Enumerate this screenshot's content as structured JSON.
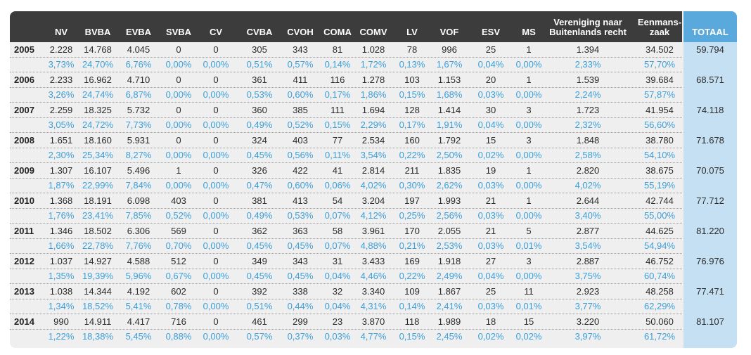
{
  "chart_data": {
    "type": "table",
    "columns": [
      "NV",
      "BVBA",
      "EVBA",
      "SVBA",
      "CV",
      "CVBA",
      "CVOH",
      "COMA",
      "COMV",
      "LV",
      "VOF",
      "ESV",
      "MS",
      "Vereniging naar Buitenlands recht",
      "Eenmans-zaak"
    ],
    "header_lines": [
      [
        "NV"
      ],
      [
        "BVBA"
      ],
      [
        "EVBA"
      ],
      [
        "SVBA"
      ],
      [
        "CV"
      ],
      [
        "CVBA"
      ],
      [
        "CVOH"
      ],
      [
        "COMA"
      ],
      [
        "COMV"
      ],
      [
        "LV"
      ],
      [
        "VOF"
      ],
      [
        "ESV"
      ],
      [
        "MS"
      ],
      [
        "Vereniging naar",
        "Buitenlands recht"
      ],
      [
        "Eenmans-",
        "zaak"
      ]
    ],
    "total_label": "TOTAAL",
    "rows": [
      {
        "year": "2005",
        "values": [
          "2.228",
          "14.768",
          "4.045",
          "0",
          "0",
          "305",
          "343",
          "81",
          "1.028",
          "78",
          "996",
          "25",
          "1",
          "1.394",
          "34.502"
        ],
        "pct": [
          "3,73%",
          "24,70%",
          "6,76%",
          "0,00%",
          "0,00%",
          "0,51%",
          "0,57%",
          "0,14%",
          "1,72%",
          "0,13%",
          "1,67%",
          "0,04%",
          "0,00%",
          "2,33%",
          "57,70%"
        ],
        "total": "59.794"
      },
      {
        "year": "2006",
        "values": [
          "2.233",
          "16.962",
          "4.710",
          "0",
          "0",
          "361",
          "411",
          "116",
          "1.278",
          "103",
          "1.153",
          "20",
          "1",
          "1.539",
          "39.684"
        ],
        "pct": [
          "3,26%",
          "24,74%",
          "6,87%",
          "0,00%",
          "0,00%",
          "0,53%",
          "0,60%",
          "0,17%",
          "1,86%",
          "0,15%",
          "1,68%",
          "0,03%",
          "0,00%",
          "2,24%",
          "57,87%"
        ],
        "total": "68.571"
      },
      {
        "year": "2007",
        "values": [
          "2.259",
          "18.325",
          "5.732",
          "0",
          "0",
          "360",
          "385",
          "111",
          "1.694",
          "128",
          "1.414",
          "30",
          "3",
          "1.723",
          "41.954"
        ],
        "pct": [
          "3,05%",
          "24,72%",
          "7,73%",
          "0,00%",
          "0,00%",
          "0,49%",
          "0,52%",
          "0,15%",
          "2,29%",
          "0,17%",
          "1,91%",
          "0,04%",
          "0,00%",
          "2,32%",
          "56,60%"
        ],
        "total": "74.118"
      },
      {
        "year": "2008",
        "values": [
          "1.651",
          "18.160",
          "5.931",
          "0",
          "0",
          "324",
          "403",
          "77",
          "2.534",
          "160",
          "1.792",
          "15",
          "3",
          "1.848",
          "38.780"
        ],
        "pct": [
          "2,30%",
          "25,34%",
          "8,27%",
          "0,00%",
          "0,00%",
          "0,45%",
          "0,56%",
          "0,11%",
          "3,54%",
          "0,22%",
          "2,50%",
          "0,02%",
          "0,00%",
          "2,58%",
          "54,10%"
        ],
        "total": "71.678"
      },
      {
        "year": "2009",
        "values": [
          "1.307",
          "16.107",
          "5.496",
          "1",
          "0",
          "326",
          "422",
          "41",
          "2.814",
          "211",
          "1.835",
          "19",
          "1",
          "2.820",
          "38.675"
        ],
        "pct": [
          "1,87%",
          "22,99%",
          "7,84%",
          "0,00%",
          "0,00%",
          "0,47%",
          "0,60%",
          "0,06%",
          "4,02%",
          "0,30%",
          "2,62%",
          "0,03%",
          "0,00%",
          "4,02%",
          "55,19%"
        ],
        "total": "70.075"
      },
      {
        "year": "2010",
        "values": [
          "1.368",
          "18.191",
          "6.098",
          "403",
          "0",
          "381",
          "413",
          "54",
          "3.204",
          "197",
          "1.993",
          "21",
          "1",
          "2.644",
          "42.744"
        ],
        "pct": [
          "1,76%",
          "23,41%",
          "7,85%",
          "0,52%",
          "0,00%",
          "0,49%",
          "0,53%",
          "0,07%",
          "4,12%",
          "0,25%",
          "2,56%",
          "0,03%",
          "0,00%",
          "3,40%",
          "55,00%"
        ],
        "total": "77.712"
      },
      {
        "year": "2011",
        "values": [
          "1.346",
          "18.502",
          "6.306",
          "569",
          "0",
          "362",
          "363",
          "58",
          "3.961",
          "170",
          "2.055",
          "21",
          "5",
          "2.877",
          "44.625"
        ],
        "pct": [
          "1,66%",
          "22,78%",
          "7,76%",
          "0,70%",
          "0,00%",
          "0,45%",
          "0,45%",
          "0,07%",
          "4,88%",
          "0,21%",
          "2,53%",
          "0,03%",
          "0,01%",
          "3,54%",
          "54,94%"
        ],
        "total": "81.220"
      },
      {
        "year": "2012",
        "values": [
          "1.037",
          "14.927",
          "4.588",
          "512",
          "0",
          "349",
          "343",
          "31",
          "3.433",
          "169",
          "1.918",
          "27",
          "3",
          "2.887",
          "46.752"
        ],
        "pct": [
          "1,35%",
          "19,39%",
          "5,96%",
          "0,67%",
          "0,00%",
          "0,45%",
          "0,45%",
          "0,04%",
          "4,46%",
          "0,22%",
          "2,49%",
          "0,04%",
          "0,00%",
          "3,75%",
          "60,74%"
        ],
        "total": "76.976"
      },
      {
        "year": "2013",
        "values": [
          "1.038",
          "14.344",
          "4.192",
          "602",
          "0",
          "392",
          "338",
          "32",
          "3.340",
          "109",
          "1.867",
          "25",
          "11",
          "2.923",
          "48.258"
        ],
        "pct": [
          "1,34%",
          "18,52%",
          "5,41%",
          "0,78%",
          "0,00%",
          "0,51%",
          "0,44%",
          "0,04%",
          "4,31%",
          "0,14%",
          "2,41%",
          "0,03%",
          "0,01%",
          "3,77%",
          "62,29%"
        ],
        "total": "77.471"
      },
      {
        "year": "2014",
        "values": [
          "990",
          "14.911",
          "4.417",
          "716",
          "0",
          "461",
          "299",
          "23",
          "3.870",
          "118",
          "1.989",
          "18",
          "15",
          "3.220",
          "50.060"
        ],
        "pct": [
          "1,22%",
          "18,38%",
          "5,45%",
          "0,88%",
          "0,00%",
          "0,57%",
          "0,37%",
          "0,03%",
          "4,77%",
          "0,15%",
          "2,45%",
          "0,02%",
          "0,02%",
          "3,97%",
          "61,72%"
        ],
        "total": "81.107"
      }
    ]
  },
  "colors": {
    "header_bg": "#3c3c3c",
    "total_header_bg": "#5aa9dc",
    "total_col_bg": "#c6e0f3",
    "percent_text": "#3b9fd9",
    "panel_bg": "#efefef"
  }
}
